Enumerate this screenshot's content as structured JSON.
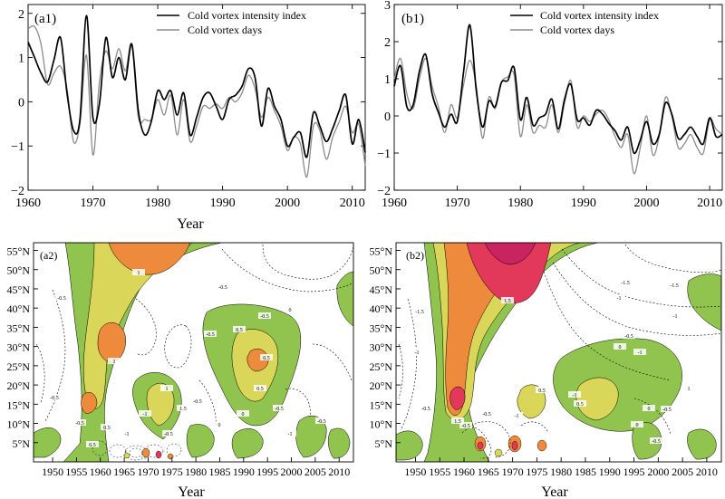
{
  "chart_data": [
    {
      "panel": "(a1)",
      "type": "line",
      "xlabel": "Year",
      "ylabel": "",
      "xlim": [
        1960,
        2012
      ],
      "ylim": [
        -2,
        2.2
      ],
      "xticks": [
        1960,
        1970,
        1980,
        1990,
        2000,
        2010
      ],
      "yticks": [
        -2,
        -1,
        0,
        1,
        2
      ],
      "legend": "top-right",
      "series": [
        {
          "name": "Cold vortex intensity index",
          "color": "#000000",
          "x": [
            1960,
            1961,
            1962,
            1963,
            1964,
            1965,
            1966,
            1967,
            1968,
            1969,
            1970,
            1971,
            1972,
            1973,
            1974,
            1975,
            1976,
            1977,
            1978,
            1979,
            1980,
            1981,
            1982,
            1983,
            1984,
            1985,
            1986,
            1987,
            1988,
            1989,
            1990,
            1991,
            1992,
            1993,
            1994,
            1995,
            1996,
            1997,
            1998,
            1999,
            2000,
            2001,
            2002,
            2003,
            2004,
            2005,
            2006,
            2007,
            2008,
            2009,
            2010,
            2011,
            2012
          ],
          "y": [
            1.35,
            1.0,
            0.65,
            0.45,
            0.95,
            1.45,
            0.2,
            -0.65,
            -0.4,
            1.95,
            -0.35,
            -0.05,
            1.45,
            0.55,
            1.0,
            0.5,
            1.3,
            -0.2,
            -0.75,
            -0.45,
            0.25,
            0.05,
            0.25,
            -0.3,
            0.2,
            -0.75,
            -0.35,
            0.1,
            0.2,
            -0.1,
            -0.4,
            0.05,
            0.15,
            0.35,
            0.75,
            0.55,
            -0.55,
            0.3,
            -0.1,
            -0.4,
            -1.0,
            -0.8,
            -0.7,
            -1.25,
            -0.25,
            -0.55,
            -0.9,
            -0.6,
            -0.2,
            0.15,
            -0.95,
            -0.4,
            -1.15
          ]
        },
        {
          "name": "Cold vortex days",
          "color": "#8c8c8c",
          "x": [
            1960,
            1961,
            1962,
            1963,
            1964,
            1965,
            1966,
            1967,
            1968,
            1969,
            1970,
            1971,
            1972,
            1973,
            1974,
            1975,
            1976,
            1977,
            1978,
            1979,
            1980,
            1981,
            1982,
            1983,
            1984,
            1985,
            1986,
            1987,
            1988,
            1989,
            1990,
            1991,
            1992,
            1993,
            1994,
            1995,
            1996,
            1997,
            1998,
            1999,
            2000,
            2001,
            2002,
            2003,
            2004,
            2005,
            2006,
            2007,
            2008,
            2009,
            2010,
            2011,
            2012
          ],
          "y": [
            1.65,
            1.7,
            1.3,
            0.4,
            0.65,
            0.8,
            0.3,
            -0.9,
            -0.5,
            1.05,
            -1.2,
            0.45,
            1.15,
            0.75,
            1.2,
            0.7,
            1.3,
            -0.35,
            -0.4,
            -0.4,
            0.05,
            -0.3,
            0.15,
            -0.75,
            0.05,
            -0.9,
            -0.55,
            -0.1,
            -0.15,
            -0.05,
            -0.15,
            0.1,
            0.0,
            0.2,
            0.6,
            0.3,
            -0.35,
            0.1,
            -0.2,
            -0.55,
            -1.1,
            -0.8,
            -0.95,
            -1.7,
            -0.55,
            -0.65,
            -1.3,
            -0.8,
            -0.45,
            -0.1,
            -0.7,
            -0.5,
            -1.45
          ]
        }
      ]
    },
    {
      "panel": "(b1)",
      "type": "line",
      "xlabel": "",
      "ylabel": "",
      "xlim": [
        1960,
        2012
      ],
      "ylim": [
        -2,
        3
      ],
      "xticks": [
        1960,
        1970,
        1980,
        1990,
        2000,
        2010
      ],
      "yticks": [
        -2,
        -1,
        0,
        1,
        2,
        3
      ],
      "legend": "top-right",
      "series": [
        {
          "name": "Cold vortex intensity index",
          "color": "#000000",
          "x": [
            1960,
            1961,
            1962,
            1963,
            1964,
            1965,
            1966,
            1967,
            1968,
            1969,
            1970,
            1971,
            1972,
            1973,
            1974,
            1975,
            1976,
            1977,
            1978,
            1979,
            1980,
            1981,
            1982,
            1983,
            1984,
            1985,
            1986,
            1987,
            1988,
            1989,
            1990,
            1991,
            1992,
            1993,
            1994,
            1995,
            1996,
            1997,
            1998,
            1999,
            2000,
            2001,
            2002,
            2003,
            2004,
            2005,
            2006,
            2007,
            2008,
            2009,
            2010,
            2011,
            2012
          ],
          "y": [
            0.8,
            1.35,
            0.25,
            0.3,
            1.2,
            1.65,
            0.6,
            0.1,
            -0.3,
            0.05,
            -0.15,
            1.2,
            2.45,
            0.7,
            -0.3,
            0.4,
            0.25,
            0.9,
            0.95,
            1.3,
            -0.1,
            0.5,
            -0.25,
            -0.05,
            0.05,
            0.45,
            -0.35,
            0.45,
            0.85,
            -0.1,
            -0.05,
            -0.25,
            0.15,
            0.05,
            -0.2,
            -0.4,
            -0.65,
            -0.3,
            -1.0,
            -0.65,
            -0.15,
            -0.75,
            -0.5,
            0.35,
            0.05,
            -0.6,
            -0.5,
            -0.3,
            -0.55,
            -0.75,
            -0.05,
            -0.55,
            -0.5
          ]
        },
        {
          "name": "Cold vortex days",
          "color": "#8c8c8c",
          "x": [
            1960,
            1961,
            1962,
            1963,
            1964,
            1965,
            1966,
            1967,
            1968,
            1969,
            1970,
            1971,
            1972,
            1973,
            1974,
            1975,
            1976,
            1977,
            1978,
            1979,
            1980,
            1981,
            1982,
            1983,
            1984,
            1985,
            1986,
            1987,
            1988,
            1989,
            1990,
            1991,
            1992,
            1993,
            1994,
            1995,
            1996,
            1997,
            1998,
            1999,
            2000,
            2001,
            2002,
            2003,
            2004,
            2005,
            2006,
            2007,
            2008,
            2009,
            2010,
            2011,
            2012
          ],
          "y": [
            1.0,
            1.55,
            0.6,
            0.2,
            1.0,
            1.55,
            0.8,
            0.25,
            -0.45,
            0.3,
            -0.05,
            0.85,
            1.5,
            0.8,
            -0.6,
            0.5,
            0.2,
            0.9,
            1.05,
            1.1,
            -0.55,
            0.3,
            -0.45,
            -0.25,
            -0.3,
            0.3,
            -0.45,
            0.35,
            0.95,
            -0.3,
            0.0,
            -0.15,
            0.05,
            0.15,
            -0.1,
            -0.55,
            -0.85,
            -0.5,
            -1.55,
            -0.85,
            0.0,
            -1.05,
            -0.55,
            0.5,
            0.0,
            -0.85,
            -0.75,
            -0.5,
            -0.85,
            -1.0,
            -0.1,
            -0.35,
            -0.5
          ]
        }
      ]
    },
    {
      "panel": "(a2)",
      "type": "heatmap",
      "xlabel": "Year",
      "ylabel": "",
      "xlim": [
        1946,
        2013
      ],
      "ylim": [
        0,
        57
      ],
      "xticks": [
        1950,
        1955,
        1960,
        1965,
        1970,
        1975,
        1980,
        1985,
        1990,
        1995,
        2000,
        2005,
        2010
      ],
      "yticks": [
        5,
        10,
        15,
        20,
        25,
        30,
        35,
        40,
        45,
        50,
        55
      ],
      "ytick_suffix": "°N",
      "grid": false,
      "contour_labels": [
        "-0.5",
        "-0.5",
        "0.5",
        "1",
        "1",
        "-0.5",
        "0",
        "0.5",
        "1",
        "-0.5",
        "-1",
        "-0.5",
        "0",
        "-0.5",
        "0.5",
        "-0.5",
        "0.5",
        "1.5",
        "0",
        "-0.5",
        "-1",
        "0.5",
        "-0.5",
        "-1",
        "-0.5"
      ],
      "fill_colors": {
        "positive_1": "#90c44e",
        "positive_2": "#d9d65a",
        "positive_3": "#ee8a3b",
        "positive_4": "#e2385a"
      }
    },
    {
      "panel": "(b2)",
      "type": "heatmap",
      "xlabel": "Year",
      "ylabel": "",
      "xlim": [
        1946,
        2013
      ],
      "ylim": [
        0,
        57
      ],
      "xticks": [
        1950,
        1955,
        1960,
        1965,
        1970,
        1975,
        1980,
        1985,
        1990,
        1995,
        2000,
        2005,
        2010
      ],
      "yticks": [
        5,
        10,
        15,
        20,
        25,
        30,
        35,
        40,
        45,
        50,
        55
      ],
      "ytick_suffix": "°N",
      "grid": false,
      "contour_labels": [
        "-1.5",
        "-1",
        "-0.5",
        "1.5",
        "-1",
        "-1.5",
        "-1",
        "-1.5",
        "1",
        "-0.5",
        "-1",
        "0",
        "-0.5",
        "-1",
        "0.5",
        "0",
        "-0.5",
        "1.5",
        "0",
        "-0.5",
        "-1",
        "0.5",
        "-0.5"
      ],
      "fill_colors": {
        "positive_1": "#90c44e",
        "positive_2": "#d9d65a",
        "positive_3": "#ee8a3b",
        "positive_4": "#e2385a",
        "positive_5": "#c9245f"
      }
    }
  ]
}
